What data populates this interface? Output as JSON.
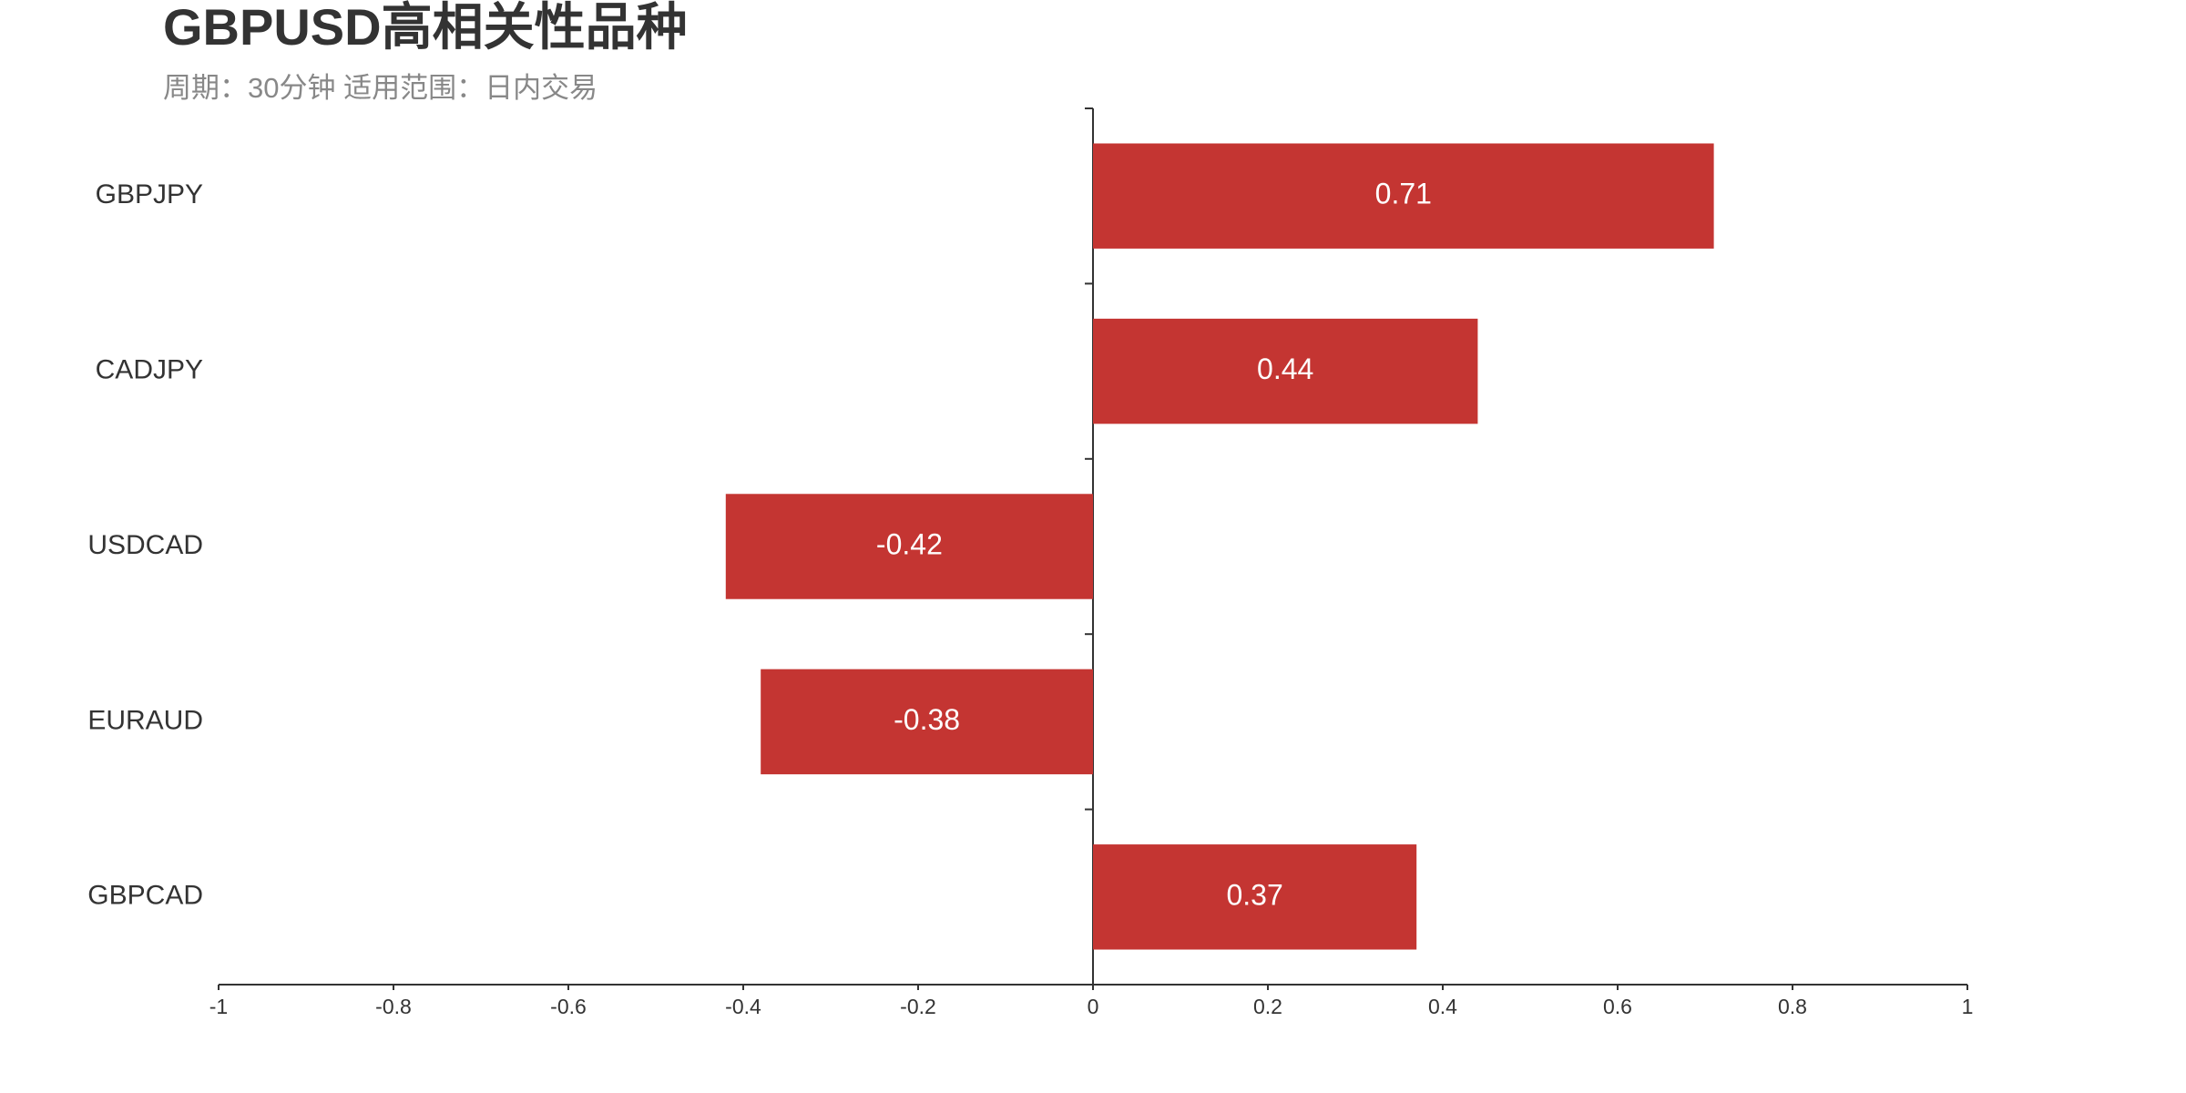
{
  "chart_data": {
    "type": "bar",
    "orientation": "horizontal",
    "title": "GBPUSD高相关性品种",
    "subtitle": "周期：30分钟 适用范围：日内交易",
    "categories": [
      "GBPJPY",
      "CADJPY",
      "USDCAD",
      "EURAUD",
      "GBPCAD"
    ],
    "values": [
      0.71,
      0.44,
      -0.42,
      -0.38,
      0.37
    ],
    "color": "#c43532",
    "xlim": [
      -1,
      1
    ],
    "xticks": [
      -1,
      -0.8,
      -0.6,
      -0.4,
      -0.2,
      0,
      0.2,
      0.4,
      0.6,
      0.8,
      1
    ],
    "grid": false
  }
}
